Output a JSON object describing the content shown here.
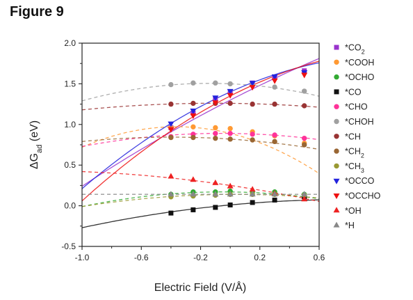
{
  "figure_label": "Figure 9",
  "chart_data": {
    "type": "scatter",
    "title": "",
    "xlabel": "Electric Field (V/Å)",
    "ylabel_main": "ΔG",
    "ylabel_sub": "ad",
    "ylabel_unit": " (eV)",
    "xlim": [
      -1.0,
      0.6
    ],
    "ylim": [
      -0.5,
      2.0
    ],
    "xticks": [
      -1.0,
      -0.6,
      -0.2,
      0.2,
      0.6
    ],
    "xtick_labels": [
      "-1.0",
      "-0.6",
      "-0.2",
      "0.2",
      "0.6"
    ],
    "yticks": [
      -0.5,
      0.0,
      0.5,
      1.0,
      1.5,
      2.0
    ],
    "ytick_labels": [
      "-0.5",
      "0.0",
      "0.5",
      "1.0",
      "1.5",
      "2.0"
    ],
    "legend_position": "right",
    "x": [
      -0.4,
      -0.25,
      -0.1,
      0.0,
      0.15,
      0.3,
      0.5
    ],
    "series": [
      {
        "name": "*CO2",
        "label_main": "*CO",
        "label_sub": "2",
        "marker": "square",
        "color": "#9933cc",
        "values": [
          0.96,
          1.14,
          1.31,
          1.4,
          1.51,
          1.58,
          1.66
        ],
        "fit": [
          -0.13,
          0.93,
          1.3
        ]
      },
      {
        "name": "*COOH",
        "label_main": "*COOH",
        "label_sub": "",
        "marker": "circle",
        "color": "#ff9933",
        "values": [
          0.96,
          0.97,
          0.96,
          0.95,
          0.91,
          0.86,
          0.77
        ],
        "fit": [
          -0.62,
          -0.45,
          0.89
        ]
      },
      {
        "name": "*OCHO",
        "label_main": "*OCHO",
        "label_sub": "",
        "marker": "circle",
        "color": "#33aa33",
        "values": [
          0.14,
          0.17,
          0.17,
          0.18,
          0.17,
          0.17,
          0.14
        ],
        "fit": [
          -0.2,
          -0.02,
          0.17
        ]
      },
      {
        "name": "*CO",
        "label_main": "*CO",
        "label_sub": "",
        "marker": "square",
        "color": "#111111",
        "values": [
          -0.09,
          -0.05,
          -0.02,
          0.01,
          0.04,
          0.07,
          0.11
        ],
        "fit": [
          -0.11,
          0.17,
          0.01
        ]
      },
      {
        "name": "*CHO",
        "label_main": "*CHO",
        "label_sub": "",
        "marker": "circle",
        "color": "#ff3399",
        "values": [
          0.85,
          0.88,
          0.89,
          0.89,
          0.88,
          0.87,
          0.83
        ],
        "fit": [
          -0.18,
          -0.02,
          0.89
        ]
      },
      {
        "name": "*CHOH",
        "label_main": "*CHOH",
        "label_sub": "",
        "marker": "circle",
        "color": "#a0a0a0",
        "values": [
          1.49,
          1.51,
          1.51,
          1.5,
          1.49,
          1.46,
          1.41
        ],
        "fit": [
          -0.29,
          -0.08,
          1.5
        ]
      },
      {
        "name": "*CH",
        "label_main": "*CH",
        "label_sub": "",
        "marker": "circle",
        "color": "#993333",
        "values": [
          1.25,
          1.26,
          1.26,
          1.26,
          1.25,
          1.25,
          1.23
        ],
        "fit": [
          -0.1,
          -0.02,
          1.26
        ]
      },
      {
        "name": "*CH2",
        "label_main": "*CH",
        "label_sub": "2",
        "marker": "circle",
        "color": "#996633",
        "values": [
          0.84,
          0.84,
          0.83,
          0.82,
          0.81,
          0.79,
          0.75
        ],
        "fit": [
          -0.15,
          -0.12,
          0.82
        ]
      },
      {
        "name": "*CH3",
        "label_main": "*CH",
        "label_sub": "3",
        "marker": "circle",
        "color": "#999933",
        "values": [
          0.11,
          0.12,
          0.13,
          0.14,
          0.14,
          0.14,
          0.13
        ],
        "fit": [
          -0.14,
          0.01,
          0.14
        ]
      },
      {
        "name": "*OCCO",
        "label_main": "*OCCO",
        "label_sub": "",
        "marker": "triangle-down",
        "color": "#2222dd",
        "values": [
          1.01,
          1.17,
          1.33,
          1.41,
          1.51,
          1.59,
          1.64
        ],
        "fit": [
          -0.37,
          0.82,
          1.4
        ]
      },
      {
        "name": "*OCCHO",
        "label_main": "*OCCHO",
        "label_sub": "",
        "marker": "triangle-down",
        "color": "#ee1111",
        "values": [
          0.94,
          1.11,
          1.27,
          1.36,
          1.46,
          1.54,
          1.61
        ],
        "fit": [
          -0.36,
          0.93,
          1.35
        ]
      },
      {
        "name": "*OH",
        "label_main": "*OH",
        "label_sub": "",
        "marker": "triangle-up",
        "color": "#ee2222",
        "values": [
          0.36,
          0.32,
          0.28,
          0.24,
          0.2,
          0.15,
          0.08
        ],
        "fit": [
          -0.1,
          -0.27,
          0.25
        ]
      },
      {
        "name": "*H",
        "label_main": "*H",
        "label_sub": "",
        "marker": "triangle-up",
        "color": "#888888",
        "values": [
          0.14,
          0.14,
          0.14,
          0.14,
          0.14,
          0.14,
          0.14
        ],
        "fit": [
          0.0,
          0.0,
          0.14
        ]
      }
    ]
  }
}
